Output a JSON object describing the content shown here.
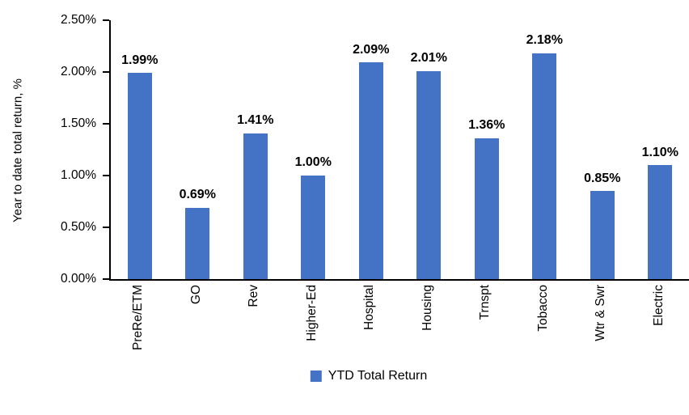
{
  "chart": {
    "y_axis_title": "Year to date total return, %",
    "legend": {
      "label": "YTD Total Return",
      "swatch_color": "#4472C4"
    },
    "colors": {
      "bar": "#4472C4",
      "axis": "#000000",
      "text": "#000000",
      "background": "#FFFFFF"
    }
  },
  "chart_data": {
    "type": "bar",
    "title": "",
    "categories": [
      "PreRe/ETM",
      "GO",
      "Rev",
      "Higher-Ed",
      "Hospital",
      "Housing",
      "Trnspt",
      "Tobacco",
      "Wtr & Swr",
      "Electric"
    ],
    "values": [
      1.99,
      0.69,
      1.41,
      1.0,
      2.09,
      2.01,
      1.36,
      2.18,
      0.85,
      1.1
    ],
    "data_labels": [
      "1.99%",
      "0.69%",
      "1.41%",
      "1.00%",
      "2.09%",
      "2.01%",
      "1.36%",
      "2.18%",
      "0.85%",
      "1.10%"
    ],
    "xlabel": "",
    "ylabel": "Year to date total return, %",
    "ylim": [
      0,
      2.5
    ],
    "yticks": [
      0,
      0.5,
      1.0,
      1.5,
      2.0,
      2.5
    ],
    "ytick_labels": [
      "0.00%",
      "0.50%",
      "1.00%",
      "1.50%",
      "2.00%",
      "2.50%"
    ],
    "grid": false,
    "legend": [
      "YTD Total Return"
    ],
    "legend_position": "bottom",
    "bar_color": "#4472C4"
  }
}
